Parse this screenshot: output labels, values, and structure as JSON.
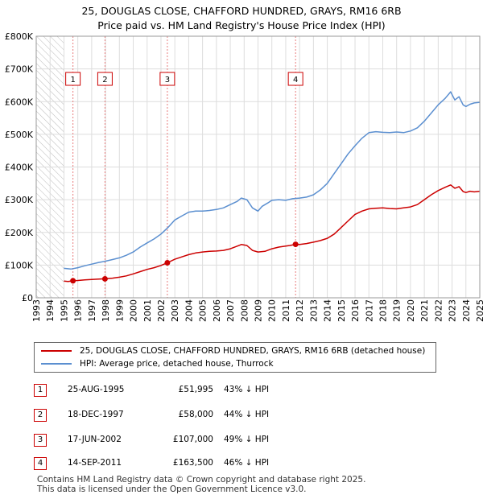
{
  "title_line1": "25, DOUGLAS CLOSE, CHAFFORD HUNDRED, GRAYS, RM16 6RB",
  "title_line2": "Price paid vs. HM Land Registry's House Price Index (HPI)",
  "colors": {
    "property": "#cc0000",
    "hpi": "#5b8fd0",
    "marker_line": "#e87c7c",
    "grid": "#dddddd",
    "hatch": "#bbbbbb"
  },
  "chart_data": {
    "type": "line",
    "x_range": [
      1993,
      2025
    ],
    "ylim": [
      0,
      800000
    ],
    "y_ticks": [
      0,
      100000,
      200000,
      300000,
      400000,
      500000,
      600000,
      700000,
      800000
    ],
    "y_tick_labels": [
      "£0",
      "£100K",
      "£200K",
      "£300K",
      "£400K",
      "£500K",
      "£600K",
      "£700K",
      "£800K"
    ],
    "x_ticks": [
      1993,
      1994,
      1995,
      1996,
      1997,
      1998,
      1999,
      2000,
      2001,
      2002,
      2003,
      2004,
      2005,
      2006,
      2007,
      2008,
      2009,
      2010,
      2011,
      2012,
      2013,
      2014,
      2015,
      2016,
      2017,
      2018,
      2019,
      2020,
      2021,
      2022,
      2023,
      2024,
      2025
    ],
    "hatch_until": 1995,
    "series": [
      {
        "name": "hpi",
        "label": "HPI: Average price, detached house, Thurrock",
        "x": [
          1995.0,
          1995.5,
          1996.0,
          1996.5,
          1997.0,
          1997.5,
          1998.0,
          1998.5,
          1999.0,
          1999.5,
          2000.0,
          2000.5,
          2001.0,
          2001.5,
          2002.0,
          2002.5,
          2003.0,
          2003.5,
          2004.0,
          2004.5,
          2005.0,
          2005.5,
          2006.0,
          2006.5,
          2007.0,
          2007.5,
          2007.8,
          2008.2,
          2008.6,
          2009.0,
          2009.3,
          2009.7,
          2010.0,
          2010.5,
          2011.0,
          2011.5,
          2012.0,
          2012.5,
          2013.0,
          2013.5,
          2014.0,
          2014.5,
          2015.0,
          2015.5,
          2016.0,
          2016.5,
          2017.0,
          2017.5,
          2018.0,
          2018.5,
          2019.0,
          2019.5,
          2020.0,
          2020.5,
          2021.0,
          2021.5,
          2022.0,
          2022.5,
          2022.9,
          2023.2,
          2023.5,
          2023.8,
          2024.0,
          2024.3,
          2024.6,
          2025.0
        ],
        "y": [
          90000,
          88000,
          92000,
          98000,
          103000,
          108000,
          112000,
          117000,
          122000,
          130000,
          140000,
          155000,
          168000,
          180000,
          195000,
          215000,
          238000,
          250000,
          262000,
          265000,
          265000,
          267000,
          270000,
          275000,
          285000,
          295000,
          305000,
          300000,
          275000,
          265000,
          280000,
          290000,
          298000,
          300000,
          298000,
          303000,
          305000,
          308000,
          315000,
          330000,
          350000,
          380000,
          410000,
          440000,
          465000,
          488000,
          505000,
          508000,
          506000,
          505000,
          507000,
          505000,
          510000,
          520000,
          540000,
          565000,
          590000,
          610000,
          630000,
          605000,
          615000,
          590000,
          585000,
          592000,
          596000,
          598000
        ]
      },
      {
        "name": "property",
        "label": "25, DOUGLAS CLOSE, CHAFFORD HUNDRED, GRAYS, RM16 6RB (detached house)",
        "x": [
          1995.0,
          1995.3,
          1995.65,
          1996.0,
          1996.5,
          1997.0,
          1997.5,
          1997.96,
          1998.5,
          1999.0,
          1999.5,
          2000.0,
          2000.5,
          2001.0,
          2001.5,
          2002.0,
          2002.46,
          2003.0,
          2003.5,
          2004.0,
          2004.5,
          2005.0,
          2005.5,
          2006.0,
          2006.5,
          2007.0,
          2007.5,
          2007.8,
          2008.2,
          2008.6,
          2009.0,
          2009.5,
          2010.0,
          2010.5,
          2011.0,
          2011.3,
          2011.71,
          2012.0,
          2012.5,
          2013.0,
          2013.5,
          2014.0,
          2014.5,
          2015.0,
          2015.5,
          2016.0,
          2016.5,
          2017.0,
          2017.5,
          2018.0,
          2018.5,
          2019.0,
          2019.5,
          2020.0,
          2020.5,
          2021.0,
          2021.5,
          2022.0,
          2022.5,
          2022.9,
          2023.2,
          2023.5,
          2023.8,
          2024.0,
          2024.3,
          2024.6,
          2025.0
        ],
        "y": [
          51000,
          50000,
          51995,
          53000,
          55000,
          56000,
          57000,
          58000,
          60000,
          63000,
          67000,
          73000,
          80000,
          87000,
          92000,
          99000,
          107000,
          118000,
          125000,
          132000,
          137000,
          140000,
          142000,
          143000,
          145000,
          150000,
          158000,
          163000,
          160000,
          145000,
          140000,
          142000,
          150000,
          155000,
          158000,
          160000,
          163500,
          163000,
          166000,
          170000,
          175000,
          182000,
          195000,
          215000,
          235000,
          255000,
          265000,
          272000,
          274000,
          275000,
          273000,
          272000,
          275000,
          278000,
          285000,
          300000,
          315000,
          328000,
          338000,
          345000,
          335000,
          340000,
          325000,
          322000,
          326000,
          324000,
          326000
        ]
      }
    ],
    "sales": [
      {
        "id": "1",
        "x": 1995.65,
        "price": 51995
      },
      {
        "id": "2",
        "x": 1997.96,
        "price": 58000
      },
      {
        "id": "3",
        "x": 2002.46,
        "price": 107000
      },
      {
        "id": "4",
        "x": 2011.71,
        "price": 163500
      }
    ]
  },
  "transactions": [
    {
      "id": "1",
      "date": "25-AUG-1995",
      "price": "£51,995",
      "hpi": "43% ↓ HPI"
    },
    {
      "id": "2",
      "date": "18-DEC-1997",
      "price": "£58,000",
      "hpi": "44% ↓ HPI"
    },
    {
      "id": "3",
      "date": "17-JUN-2002",
      "price": "£107,000",
      "hpi": "49% ↓ HPI"
    },
    {
      "id": "4",
      "date": "14-SEP-2011",
      "price": "£163,500",
      "hpi": "46% ↓ HPI"
    }
  ],
  "footer_line1": "Contains HM Land Registry data © Crown copyright and database right 2025.",
  "footer_line2": "This data is licensed under the Open Government Licence v3.0."
}
